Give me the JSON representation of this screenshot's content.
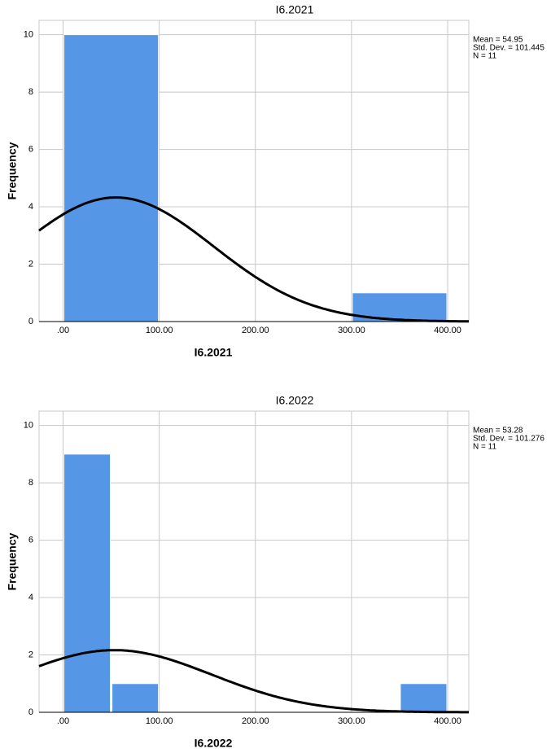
{
  "chart_data": [
    {
      "type": "histogram",
      "title": "I6.2021",
      "x_label": "I6.2021",
      "y_label": "Frequency",
      "bins": [
        0,
        100,
        200,
        300,
        400
      ],
      "values": [
        10,
        0,
        0,
        1
      ],
      "color": "#5596e6",
      "xlim": [
        -25,
        422
      ],
      "ylim": [
        0,
        10.5
      ],
      "xticks": [
        {
          "value": 0,
          "label": ".00"
        },
        {
          "value": 100,
          "label": "100.00"
        },
        {
          "value": 200,
          "label": "200.00"
        },
        {
          "value": 300,
          "label": "300.00"
        },
        {
          "value": 400,
          "label": "400.00"
        }
      ],
      "yticks": [
        0,
        2,
        4,
        6,
        8,
        10
      ],
      "grid": true,
      "stats": [
        "Mean = 54.95",
        "Std. Dev. = 101.445",
        "N = 11"
      ],
      "normal_curve": {
        "mean": 54.95,
        "std_dev": 101.445,
        "n": 11
      }
    },
    {
      "type": "histogram",
      "title": "I6.2022",
      "x_label": "I6.2022",
      "y_label": "Frequency",
      "bins": [
        0,
        50,
        100,
        150,
        200,
        250,
        300,
        350,
        400
      ],
      "values": [
        9,
        1,
        0,
        0,
        0,
        0,
        0,
        1
      ],
      "color": "#5596e6",
      "xlim": [
        -25,
        422
      ],
      "ylim": [
        0,
        10.5
      ],
      "xticks": [
        {
          "value": 0,
          "label": ".00"
        },
        {
          "value": 100,
          "label": "100.00"
        },
        {
          "value": 200,
          "label": "200.00"
        },
        {
          "value": 300,
          "label": "300.00"
        },
        {
          "value": 400,
          "label": "400.00"
        }
      ],
      "yticks": [
        0,
        2,
        4,
        6,
        8,
        10
      ],
      "grid": true,
      "stats": [
        "Mean = 53.28",
        "Std. Dev. = 101.276",
        "N = 11"
      ],
      "normal_curve": {
        "mean": 53.28,
        "std_dev": 101.276,
        "n": 11
      }
    }
  ]
}
